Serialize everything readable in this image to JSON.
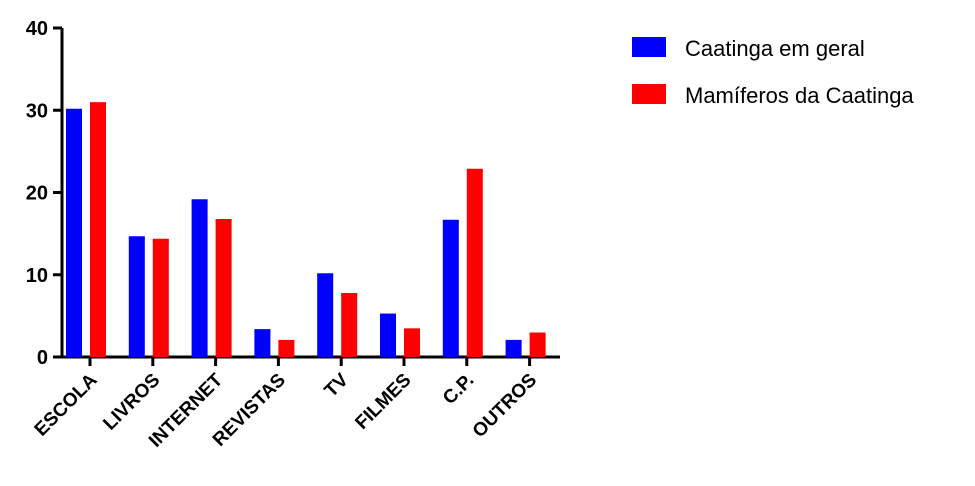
{
  "chart_data": {
    "type": "bar",
    "title": "",
    "xlabel": "",
    "ylabel": "",
    "ylim": [
      0,
      40
    ],
    "yticks": [
      0,
      10,
      20,
      30,
      40
    ],
    "grid": false,
    "legend_position": "top-right",
    "categories": [
      "ESCOLA",
      "LIVROS",
      "INTERNET",
      "REVISTAS",
      "TV",
      "FILMES",
      "C.P.",
      "OUTROS"
    ],
    "series": [
      {
        "name": "Caatinga em geral",
        "color": "#0000ff",
        "values": [
          30,
          14.5,
          19,
          3.2,
          10,
          5.1,
          16.5,
          1.9
        ]
      },
      {
        "name": "Mamíferos da Caatinga",
        "color": "#ff0000",
        "values": [
          30.8,
          14.2,
          16.6,
          1.9,
          7.6,
          3.3,
          22.7,
          2.8
        ]
      }
    ]
  }
}
